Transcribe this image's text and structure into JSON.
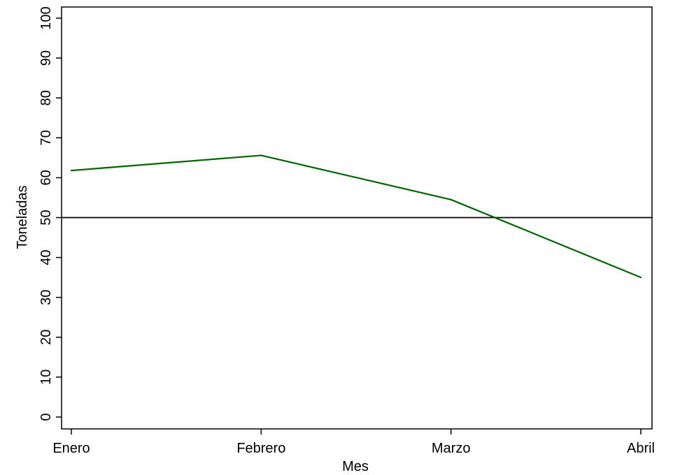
{
  "chart_data": {
    "type": "line",
    "title": "",
    "xlabel": "Mes",
    "ylabel": "Toneladas",
    "categories": [
      "Enero",
      "Febrero",
      "Marzo",
      "Abril"
    ],
    "series": [
      {
        "values": [
          61.8,
          65.6,
          54.5,
          35.0
        ],
        "color": "#006400"
      }
    ],
    "reference_line": {
      "y": 50,
      "color": "#000000"
    },
    "ylim": [
      0,
      100
    ],
    "yticks": [
      0,
      10,
      20,
      30,
      40,
      50,
      60,
      70,
      80,
      90,
      100
    ],
    "grid": false,
    "legend": "none"
  }
}
